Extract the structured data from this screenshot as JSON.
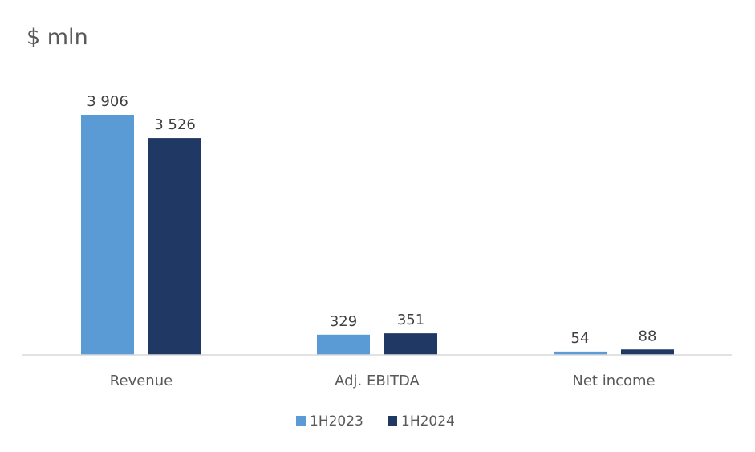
{
  "chart_data": {
    "type": "bar",
    "title": "$ mln",
    "categories": [
      "Revenue",
      "Adj. EBITDA",
      "Net income"
    ],
    "series": [
      {
        "name": "1H2023",
        "color": "#5b9bd5",
        "values": [
          3906,
          329,
          54
        ],
        "labels": [
          "3 906",
          "329",
          "54"
        ]
      },
      {
        "name": "1H2024",
        "color": "#1f3864",
        "values": [
          3526,
          351,
          88
        ],
        "labels": [
          "3 526",
          "351",
          "88"
        ]
      }
    ],
    "xlabel": "",
    "ylabel": "",
    "ylim": [
      0,
      3906
    ],
    "grid": false,
    "legend_position": "bottom",
    "axis_color": "#d9d9d9"
  }
}
